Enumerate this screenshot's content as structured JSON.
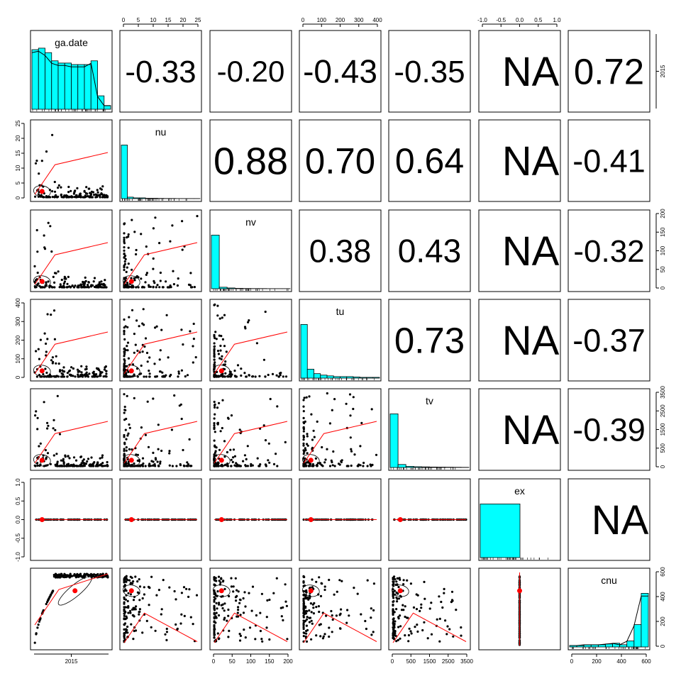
{
  "chart_data": {
    "type": "scatter",
    "title": "",
    "variables": [
      "ga.date",
      "nu",
      "nv",
      "tu",
      "tv",
      "ex",
      "cnu"
    ],
    "correlations_upper": [
      [
        "",
        "-0.33",
        "-0.20",
        "-0.43",
        "-0.35",
        "NA",
        "0.72"
      ],
      [
        "",
        "",
        "0.88",
        "0.70",
        "0.64",
        "NA",
        "-0.41"
      ],
      [
        "",
        "",
        "",
        "0.38",
        "0.43",
        "NA",
        "-0.32"
      ],
      [
        "",
        "",
        "",
        "",
        "0.73",
        "NA",
        "-0.37"
      ],
      [
        "",
        "",
        "",
        "",
        "",
        "NA",
        "-0.39"
      ],
      [
        "",
        "",
        "",
        "",
        "",
        "",
        "NA"
      ]
    ],
    "axes": {
      "top": [
        {
          "col": 1,
          "var": "nu",
          "ticks": [
            "0",
            "5",
            "10",
            "15",
            "20",
            "25"
          ],
          "range": [
            0,
            26
          ]
        },
        {
          "col": 3,
          "var": "tu",
          "ticks": [
            "0",
            "100",
            "200",
            "300",
            "400"
          ],
          "range": [
            0,
            390
          ]
        },
        {
          "col": 5,
          "var": "ex",
          "ticks": [
            "-1.0",
            "-0.5",
            "0.0",
            "0.5",
            "1.0"
          ],
          "range": [
            -1,
            1
          ]
        }
      ],
      "bottom": [
        {
          "col": 0,
          "var": "ga.date",
          "ticks": [
            "2015"
          ]
        },
        {
          "col": 2,
          "var": "nv",
          "ticks": [
            "0",
            "50",
            "100",
            "150",
            "200"
          ],
          "range": [
            0,
            205
          ]
        },
        {
          "col": 4,
          "var": "tv",
          "ticks": [
            "0",
            "500",
            "1500",
            "2500",
            "3500"
          ],
          "range": [
            0,
            3600
          ]
        },
        {
          "col": 6,
          "var": "cnu",
          "ticks": [
            "0",
            "200",
            "400",
            "600"
          ],
          "range": [
            0,
            760
          ]
        }
      ],
      "left": [
        {
          "row": 1,
          "var": "nu",
          "ticks": [
            "0",
            "5",
            "10",
            "15",
            "20",
            "25"
          ],
          "range": [
            0,
            26
          ]
        },
        {
          "row": 3,
          "var": "tu",
          "ticks": [
            "0",
            "100",
            "200",
            "300",
            "400"
          ],
          "range": [
            0,
            390
          ]
        },
        {
          "row": 5,
          "var": "ex",
          "ticks": [
            "-1.0",
            "-0.5",
            "0.0",
            "0.5",
            "1.0"
          ],
          "range": [
            -1,
            1
          ]
        }
      ],
      "right": [
        {
          "row": 0,
          "var": "ga.date",
          "ticks": [
            "2015"
          ]
        },
        {
          "row": 2,
          "var": "nv",
          "ticks": [
            "0",
            "50",
            "100",
            "150",
            "200"
          ],
          "range": [
            0,
            205
          ]
        },
        {
          "row": 4,
          "var": "tv",
          "ticks": [
            "0",
            "500",
            "1500",
            "2500",
            "3500"
          ],
          "range": [
            0,
            3600
          ]
        },
        {
          "row": 6,
          "var": "cnu",
          "ticks": [
            "0",
            "200",
            "400",
            "600"
          ],
          "range": [
            0,
            760
          ]
        }
      ]
    },
    "histograms": [
      {
        "var": "ga.date",
        "values": [
          0.8,
          0.82,
          0.76,
          0.65,
          0.62,
          0.62,
          0.6,
          0.6,
          0.6,
          0.65,
          0.18,
          0.05
        ]
      },
      {
        "var": "nu",
        "values": [
          0.72,
          0.02,
          0.01,
          0.01,
          0.005,
          0.005,
          0.003,
          0.002,
          0.002,
          0.001,
          0.001,
          0.001,
          0.001
        ]
      },
      {
        "var": "nv",
        "values": [
          0.72,
          0.02,
          0.01,
          0.005,
          0.003,
          0.002,
          0.002,
          0.001,
          0.001,
          0.001
        ]
      },
      {
        "var": "tu",
        "values": [
          0.72,
          0.12,
          0.06,
          0.04,
          0.03,
          0.02,
          0.02,
          0.02,
          0.015,
          0.01,
          0.01,
          0.01
        ]
      },
      {
        "var": "tv",
        "values": [
          0.72,
          0.04,
          0.015,
          0.01,
          0.008,
          0.006,
          0.005,
          0.004,
          0.003,
          0.002
        ]
      },
      {
        "var": "ex",
        "values": [
          0.72
        ]
      },
      {
        "var": "cnu",
        "values": [
          0.02,
          0.02,
          0.03,
          0.03,
          0.03,
          0.04,
          0.05,
          0.03,
          0.08,
          0.3,
          0.72
        ]
      }
    ],
    "grid": false,
    "legend": "none"
  }
}
